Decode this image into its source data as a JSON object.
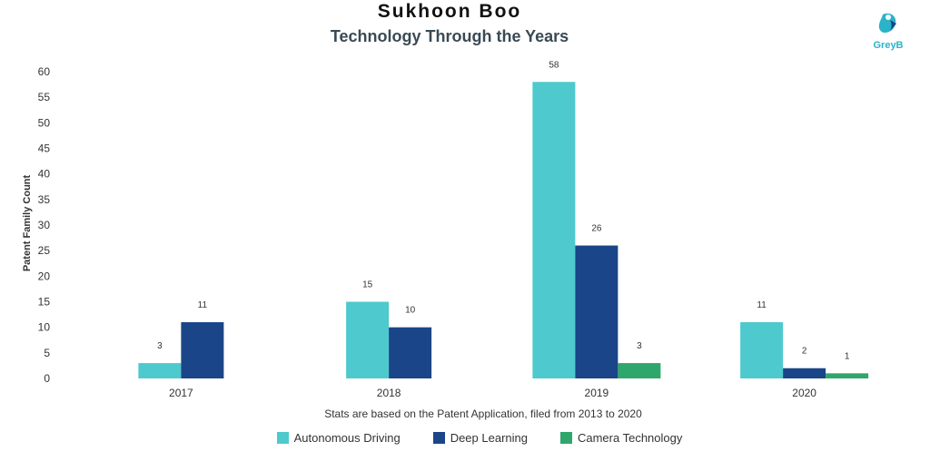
{
  "chart_data": {
    "type": "bar",
    "title": "Sukhoon Boo",
    "subtitle": "Technology Through the Years",
    "categories": [
      "2017",
      "2018",
      "2019",
      "2020"
    ],
    "series": [
      {
        "name": "Autonomous Driving",
        "color": "#4ec9ce",
        "values": [
          3,
          15,
          58,
          11
        ]
      },
      {
        "name": "Deep Learning",
        "color": "#1a4588",
        "values": [
          11,
          10,
          26,
          2
        ]
      },
      {
        "name": "Camera Technology",
        "color": "#2fa66b",
        "values": [
          null,
          null,
          3,
          1
        ]
      }
    ],
    "ylabel": "Patent Family Count",
    "xlabel": "",
    "ylim": [
      0,
      60
    ],
    "yticks": [
      0,
      5,
      10,
      15,
      20,
      25,
      30,
      35,
      40,
      45,
      50,
      55,
      60
    ],
    "grid": false,
    "legend_position": "bottom"
  },
  "note": "Stats are based on the Patent Application, filed from 2013 to 2020",
  "brand": {
    "name": "GreyB",
    "color": "#2bb3c8"
  },
  "icons": {
    "logo": "greyb-logo-icon"
  }
}
